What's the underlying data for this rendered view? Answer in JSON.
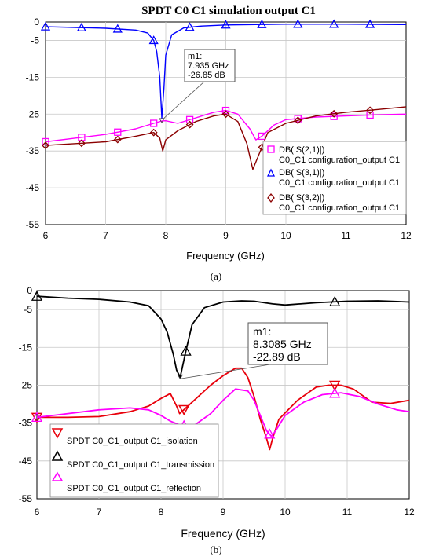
{
  "chart_data": [
    {
      "type": "line",
      "title": "SPDT C0 C1 simulation output C1",
      "xlabel": "Frequency (GHz)",
      "ylabel": "",
      "xlim": [
        6,
        12
      ],
      "ylim": [
        -55,
        0
      ],
      "xticks": [
        "6",
        "7",
        "8",
        "9",
        "10",
        "11",
        "12"
      ],
      "yticks": [
        "0",
        "-5",
        "-15",
        "-25",
        "-35",
        "-45",
        "-55"
      ],
      "grid": true,
      "legend_position": "right",
      "caption": "(a)",
      "marker": {
        "name": "m1:",
        "freq": "7.935 GHz",
        "value": "-26.85 dB",
        "x": 7.935,
        "y": -26.85
      },
      "series": [
        {
          "name": "DB(|S(2,1)|)",
          "name_line2": "C0_C1 configuration_output C1",
          "color": "#ff00ff",
          "marker": "square",
          "x": [
            6.0,
            6.5,
            7.0,
            7.5,
            7.8,
            7.935,
            8.0,
            8.2,
            8.5,
            8.8,
            9.0,
            9.2,
            9.4,
            9.5,
            9.6,
            9.8,
            10.0,
            10.5,
            11.0,
            11.5,
            12.0
          ],
          "values": [
            -32.5,
            -31.5,
            -30.5,
            -29.0,
            -27.5,
            -26.85,
            -26.8,
            -27.5,
            -26.0,
            -24.5,
            -24.0,
            -25.0,
            -29.0,
            -32.0,
            -31.0,
            -28.0,
            -26.5,
            -25.8,
            -25.5,
            -25.2,
            -25.0
          ]
        },
        {
          "name": "DB(|S(3,1)|)",
          "name_line2": "C0_C1 configuration_output C1",
          "color": "#0000ff",
          "marker": "triangle",
          "x": [
            6.0,
            6.5,
            7.0,
            7.5,
            7.7,
            7.8,
            7.85,
            7.9,
            7.935,
            7.97,
            8.0,
            8.1,
            8.3,
            8.6,
            9.0,
            10.0,
            11.0,
            12.0
          ],
          "values": [
            -1.3,
            -1.5,
            -1.7,
            -2.2,
            -3.0,
            -5.0,
            -8.0,
            -15.0,
            -26.0,
            -18.0,
            -9.0,
            -3.5,
            -1.6,
            -1.1,
            -0.8,
            -0.6,
            -0.6,
            -0.7
          ]
        },
        {
          "name": "DB(|S(3,2)|)",
          "name_line2": "C0_C1 configuration_output C1",
          "color": "#8b0000",
          "marker": "diamond",
          "x": [
            6.0,
            6.5,
            7.0,
            7.5,
            7.8,
            7.9,
            7.95,
            8.0,
            8.2,
            8.5,
            8.8,
            9.0,
            9.2,
            9.35,
            9.45,
            9.55,
            9.7,
            10.0,
            10.5,
            11.0,
            11.5,
            12.0
          ],
          "values": [
            -33.5,
            -33.0,
            -32.5,
            -31.0,
            -30.0,
            -31.5,
            -35.0,
            -32.0,
            -29.5,
            -27.0,
            -25.5,
            -25.0,
            -27.0,
            -33.0,
            -40.0,
            -36.0,
            -30.0,
            -27.5,
            -25.5,
            -24.5,
            -23.8,
            -23.0
          ]
        }
      ]
    },
    {
      "type": "line",
      "title": "",
      "xlabel": "Frequency (GHz)",
      "ylabel": "",
      "xlim": [
        6,
        12
      ],
      "ylim": [
        -55,
        0
      ],
      "xticks": [
        "6",
        "7",
        "8",
        "9",
        "10",
        "11",
        "12"
      ],
      "yticks": [
        "0",
        "-5",
        "-15",
        "-25",
        "-35",
        "-45",
        "-55"
      ],
      "grid": true,
      "legend_position": "bottom-left",
      "caption": "(b)",
      "marker": {
        "name": "m1:",
        "freq": "8.3085 GHz",
        "value": "-22.89 dB",
        "x": 8.3085,
        "y": -22.89
      },
      "series": [
        {
          "name": "SPDT C0_C1_output C1_isolation",
          "color": "#e8000b",
          "marker": "triangle-down",
          "x": [
            6.0,
            6.5,
            7.0,
            7.5,
            7.8,
            8.0,
            8.15,
            8.25,
            8.3,
            8.4,
            8.6,
            8.8,
            9.0,
            9.2,
            9.3,
            9.4,
            9.5,
            9.6,
            9.7,
            9.75,
            9.8,
            9.9,
            10.2,
            10.5,
            10.7,
            10.9,
            11.1,
            11.4,
            11.7,
            12.0
          ],
          "values": [
            -33.5,
            -33.5,
            -33.3,
            -32.0,
            -30.5,
            -28.5,
            -27.2,
            -30.5,
            -32.5,
            -31.0,
            -28.0,
            -25.0,
            -22.5,
            -20.5,
            -20.5,
            -23.0,
            -28.0,
            -34.0,
            -39.0,
            -42.0,
            -39.0,
            -34.0,
            -29.0,
            -25.5,
            -25.0,
            -25.0,
            -26.0,
            -29.5,
            -29.8,
            -29.0
          ]
        },
        {
          "name": "SPDT C0_C1_output C1_transmission",
          "color": "#000000",
          "marker": "triangle",
          "x": [
            6.0,
            6.5,
            7.0,
            7.5,
            7.8,
            8.0,
            8.1,
            8.2,
            8.25,
            8.3085,
            8.4,
            8.5,
            8.7,
            9.0,
            9.3,
            9.5,
            9.8,
            10.0,
            10.5,
            11.0,
            11.5,
            12.0
          ],
          "values": [
            -1.5,
            -2.0,
            -2.3,
            -3.0,
            -4.0,
            -7.5,
            -11.0,
            -17.0,
            -21.0,
            -22.89,
            -16.0,
            -9.0,
            -4.5,
            -3.0,
            -2.7,
            -2.8,
            -3.5,
            -3.8,
            -3.2,
            -2.8,
            -2.7,
            -3.0
          ]
        },
        {
          "name": "SPDT C0_C1_output C1_reflection",
          "color": "#ff00ff",
          "marker": "triangle",
          "x": [
            6.0,
            6.5,
            7.0,
            7.5,
            7.8,
            8.0,
            8.15,
            8.3,
            8.5,
            8.8,
            9.0,
            9.2,
            9.4,
            9.5,
            9.6,
            9.7,
            9.78,
            9.85,
            10.0,
            10.3,
            10.6,
            10.9,
            11.2,
            11.5,
            11.8,
            12.0
          ],
          "values": [
            -33.5,
            -32.5,
            -31.5,
            -31.0,
            -31.5,
            -33.0,
            -34.5,
            -35.5,
            -36.0,
            -32.5,
            -29.0,
            -26.0,
            -26.5,
            -29.0,
            -33.0,
            -37.0,
            -38.5,
            -37.0,
            -33.0,
            -29.5,
            -27.5,
            -27.0,
            -28.0,
            -30.0,
            -31.5,
            -32.0
          ]
        }
      ]
    }
  ]
}
